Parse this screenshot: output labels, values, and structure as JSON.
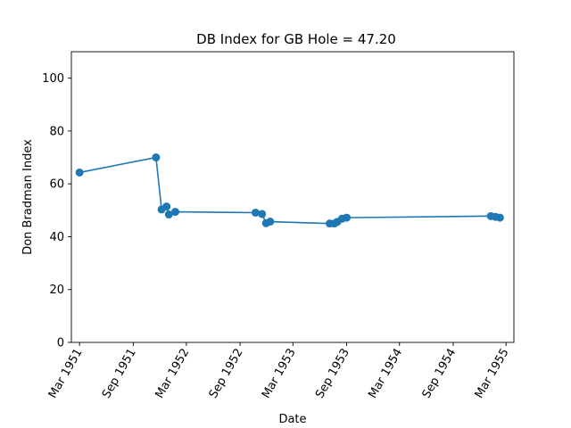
{
  "chart_data": {
    "type": "line",
    "title": "DB Index for GB Hole = 47.20",
    "xlabel": "Date",
    "ylabel": "Don Bradman Index",
    "ylim": [
      0,
      110
    ],
    "yticks": [
      0,
      20,
      40,
      60,
      80,
      100
    ],
    "xlim": [
      "1951-02-01",
      "1955-03-28"
    ],
    "xticks": [
      {
        "date": "1951-03-01",
        "label": "Mar 1951"
      },
      {
        "date": "1951-09-01",
        "label": "Sep 1951"
      },
      {
        "date": "1952-03-01",
        "label": "Mar 1952"
      },
      {
        "date": "1952-09-01",
        "label": "Sep 1952"
      },
      {
        "date": "1953-03-01",
        "label": "Mar 1953"
      },
      {
        "date": "1953-09-01",
        "label": "Sep 1953"
      },
      {
        "date": "1954-03-01",
        "label": "Mar 1954"
      },
      {
        "date": "1954-09-01",
        "label": "Sep 1954"
      },
      {
        "date": "1955-03-01",
        "label": "Mar 1955"
      }
    ],
    "grid": false,
    "color": "#1f77b4",
    "series": [
      {
        "x": [
          "1951-03-01",
          "1951-11-18",
          "1951-12-07",
          "1951-12-24",
          "1952-01-01",
          "1952-01-23",
          "1952-10-24",
          "1952-11-15",
          "1952-11-29",
          "1952-12-13",
          "1953-07-05",
          "1953-07-21",
          "1953-07-31",
          "1953-08-16",
          "1953-09-01",
          "1955-01-08",
          "1955-01-24",
          "1955-02-08"
        ],
        "y": [
          64.3,
          70.0,
          50.3,
          51.4,
          48.4,
          49.4,
          49.1,
          48.6,
          45.1,
          45.7,
          45.0,
          45.0,
          45.6,
          46.8,
          47.2,
          47.8,
          47.5,
          47.2
        ]
      }
    ]
  }
}
